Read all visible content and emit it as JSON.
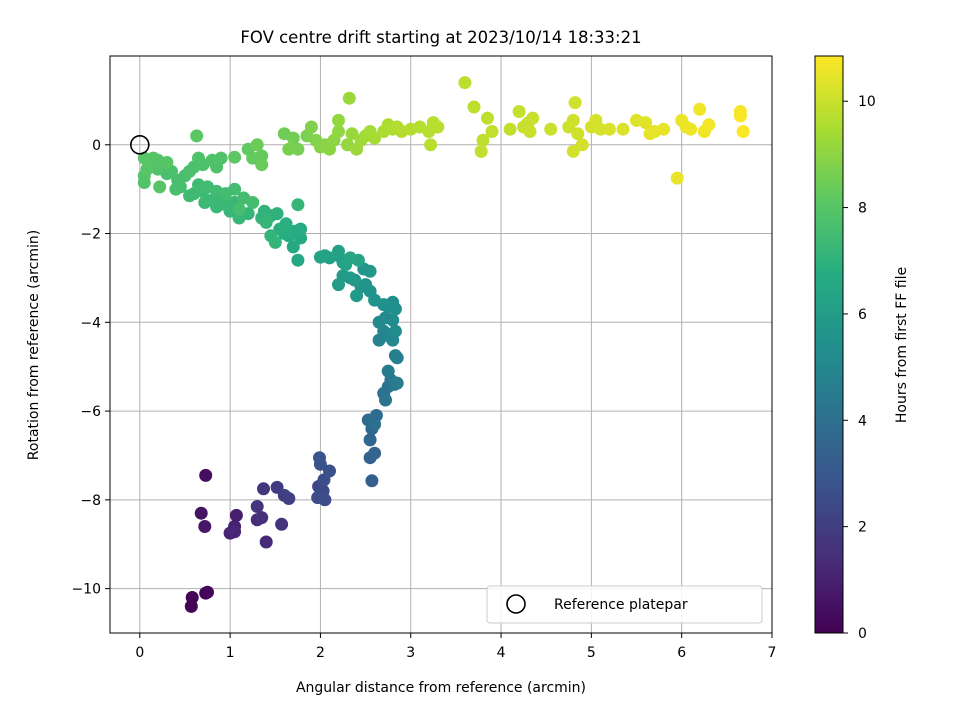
{
  "chart_data": {
    "type": "scatter",
    "title": "FOV centre drift starting at 2023/10/14 18:33:21",
    "xlabel": "Angular distance from reference (arcmin)",
    "ylabel": "Rotation from reference (arcmin)",
    "xlim": [
      -0.33,
      7.0
    ],
    "ylim": [
      -11.0,
      2.0
    ],
    "xticks": [
      0,
      1,
      2,
      3,
      4,
      5,
      6,
      7
    ],
    "yticks": [
      -10,
      -8,
      -6,
      -4,
      -2,
      0
    ],
    "grid": true,
    "legend": {
      "position": "lower-right",
      "entries": [
        {
          "label": "Reference platepar",
          "marker": "open-circle"
        }
      ]
    },
    "reference_point": {
      "x": 0,
      "y": 0
    },
    "colorbar": {
      "label": "Hours from first FF file",
      "min": 0,
      "max": 10.85,
      "ticks": [
        0,
        2,
        4,
        6,
        8,
        10
      ],
      "colormap": "viridis"
    },
    "points": [
      {
        "x": 0.57,
        "y": -10.4,
        "c": 0.05
      },
      {
        "x": 0.58,
        "y": -10.2,
        "c": 0.1
      },
      {
        "x": 0.73,
        "y": -10.1,
        "c": 0.15
      },
      {
        "x": 0.75,
        "y": -10.08,
        "c": 0.2
      },
      {
        "x": 0.73,
        "y": -7.45,
        "c": 0.4
      },
      {
        "x": 0.68,
        "y": -8.3,
        "c": 0.6
      },
      {
        "x": 0.72,
        "y": -8.6,
        "c": 0.7
      },
      {
        "x": 1.07,
        "y": -8.35,
        "c": 0.9
      },
      {
        "x": 1.05,
        "y": -8.6,
        "c": 1.0
      },
      {
        "x": 1.0,
        "y": -8.75,
        "c": 1.1
      },
      {
        "x": 1.05,
        "y": -8.72,
        "c": 1.2
      },
      {
        "x": 1.4,
        "y": -8.95,
        "c": 1.3
      },
      {
        "x": 1.3,
        "y": -8.45,
        "c": 1.4
      },
      {
        "x": 1.35,
        "y": -8.4,
        "c": 1.5
      },
      {
        "x": 1.57,
        "y": -8.55,
        "c": 1.6
      },
      {
        "x": 1.3,
        "y": -8.15,
        "c": 1.7
      },
      {
        "x": 1.37,
        "y": -7.75,
        "c": 1.8
      },
      {
        "x": 1.52,
        "y": -7.72,
        "c": 1.9
      },
      {
        "x": 1.6,
        "y": -7.9,
        "c": 2.0
      },
      {
        "x": 1.65,
        "y": -7.97,
        "c": 2.1
      },
      {
        "x": 1.98,
        "y": -7.7,
        "c": 2.3
      },
      {
        "x": 2.03,
        "y": -7.8,
        "c": 2.4
      },
      {
        "x": 1.97,
        "y": -7.95,
        "c": 2.5
      },
      {
        "x": 2.05,
        "y": -8.0,
        "c": 2.55
      },
      {
        "x": 2.04,
        "y": -7.55,
        "c": 2.6
      },
      {
        "x": 2.1,
        "y": -7.35,
        "c": 2.7
      },
      {
        "x": 2.0,
        "y": -7.2,
        "c": 2.8
      },
      {
        "x": 1.99,
        "y": -7.05,
        "c": 2.9
      },
      {
        "x": 2.57,
        "y": -7.57,
        "c": 3.3
      },
      {
        "x": 2.55,
        "y": -7.05,
        "c": 3.4
      },
      {
        "x": 2.6,
        "y": -6.95,
        "c": 3.5
      },
      {
        "x": 2.55,
        "y": -6.65,
        "c": 3.6
      },
      {
        "x": 2.57,
        "y": -6.4,
        "c": 3.7
      },
      {
        "x": 2.53,
        "y": -6.2,
        "c": 3.8
      },
      {
        "x": 2.62,
        "y": -6.1,
        "c": 3.9
      },
      {
        "x": 2.6,
        "y": -6.3,
        "c": 4.0
      },
      {
        "x": 2.7,
        "y": -5.6,
        "c": 4.1
      },
      {
        "x": 2.75,
        "y": -5.45,
        "c": 4.2
      },
      {
        "x": 2.72,
        "y": -5.75,
        "c": 4.25
      },
      {
        "x": 2.78,
        "y": -5.3,
        "c": 4.3
      },
      {
        "x": 2.82,
        "y": -5.4,
        "c": 4.4
      },
      {
        "x": 2.75,
        "y": -5.1,
        "c": 4.5
      },
      {
        "x": 2.85,
        "y": -5.37,
        "c": 4.55
      },
      {
        "x": 2.85,
        "y": -4.8,
        "c": 4.6
      },
      {
        "x": 2.83,
        "y": -4.75,
        "c": 4.7
      },
      {
        "x": 2.65,
        "y": -4.4,
        "c": 4.8
      },
      {
        "x": 2.7,
        "y": -4.2,
        "c": 4.9
      },
      {
        "x": 2.75,
        "y": -4.3,
        "c": 5.0
      },
      {
        "x": 2.8,
        "y": -4.4,
        "c": 5.05
      },
      {
        "x": 2.65,
        "y": -4.0,
        "c": 5.1
      },
      {
        "x": 2.72,
        "y": -3.9,
        "c": 5.15
      },
      {
        "x": 2.8,
        "y": -3.95,
        "c": 5.2
      },
      {
        "x": 2.83,
        "y": -4.2,
        "c": 5.25
      },
      {
        "x": 2.75,
        "y": -3.65,
        "c": 5.3
      },
      {
        "x": 2.8,
        "y": -3.55,
        "c": 5.35
      },
      {
        "x": 2.83,
        "y": -3.7,
        "c": 5.4
      },
      {
        "x": 2.7,
        "y": -3.6,
        "c": 5.45
      },
      {
        "x": 2.6,
        "y": -3.5,
        "c": 5.5
      },
      {
        "x": 2.55,
        "y": -3.3,
        "c": 5.55
      },
      {
        "x": 2.5,
        "y": -3.15,
        "c": 5.6
      },
      {
        "x": 2.45,
        "y": -3.2,
        "c": 5.65
      },
      {
        "x": 2.48,
        "y": -2.8,
        "c": 5.7
      },
      {
        "x": 2.55,
        "y": -2.85,
        "c": 5.75
      },
      {
        "x": 2.38,
        "y": -3.05,
        "c": 5.8
      },
      {
        "x": 2.4,
        "y": -3.4,
        "c": 5.85
      },
      {
        "x": 2.33,
        "y": -3.0,
        "c": 5.9
      },
      {
        "x": 2.25,
        "y": -2.95,
        "c": 5.95
      },
      {
        "x": 2.2,
        "y": -3.15,
        "c": 6.0
      },
      {
        "x": 2.25,
        "y": -2.65,
        "c": 6.05
      },
      {
        "x": 2.2,
        "y": -2.5,
        "c": 6.1
      },
      {
        "x": 2.2,
        "y": -2.4,
        "c": 6.15
      },
      {
        "x": 2.1,
        "y": -2.55,
        "c": 6.2
      },
      {
        "x": 2.05,
        "y": -2.5,
        "c": 6.25
      },
      {
        "x": 2.0,
        "y": -2.53,
        "c": 6.3
      },
      {
        "x": 2.28,
        "y": -2.7,
        "c": 6.35
      },
      {
        "x": 2.42,
        "y": -2.6,
        "c": 6.4
      },
      {
        "x": 2.33,
        "y": -2.55,
        "c": 6.45
      },
      {
        "x": 1.75,
        "y": -2.6,
        "c": 6.5
      },
      {
        "x": 1.7,
        "y": -2.3,
        "c": 6.55
      },
      {
        "x": 1.78,
        "y": -2.1,
        "c": 6.6
      },
      {
        "x": 1.72,
        "y": -1.95,
        "c": 6.65
      },
      {
        "x": 1.78,
        "y": -1.9,
        "c": 6.7
      },
      {
        "x": 1.65,
        "y": -2.05,
        "c": 6.75
      },
      {
        "x": 1.6,
        "y": -2.0,
        "c": 6.8
      },
      {
        "x": 1.55,
        "y": -1.9,
        "c": 6.85
      },
      {
        "x": 1.62,
        "y": -1.78,
        "c": 6.9
      },
      {
        "x": 1.52,
        "y": -1.55,
        "c": 6.95
      },
      {
        "x": 1.45,
        "y": -1.6,
        "c": 7.0
      },
      {
        "x": 1.38,
        "y": -1.5,
        "c": 7.05
      },
      {
        "x": 1.35,
        "y": -1.65,
        "c": 7.1
      },
      {
        "x": 1.45,
        "y": -2.05,
        "c": 7.12
      },
      {
        "x": 1.5,
        "y": -2.2,
        "c": 7.14
      },
      {
        "x": 1.4,
        "y": -1.75,
        "c": 7.16
      },
      {
        "x": 1.75,
        "y": -1.35,
        "c": 7.18
      },
      {
        "x": 1.2,
        "y": -1.55,
        "c": 7.2
      },
      {
        "x": 1.1,
        "y": -1.65,
        "c": 7.22
      },
      {
        "x": 1.0,
        "y": -1.5,
        "c": 7.24
      },
      {
        "x": 1.05,
        "y": -1.3,
        "c": 7.26
      },
      {
        "x": 0.95,
        "y": -1.35,
        "c": 7.28
      },
      {
        "x": 0.85,
        "y": -1.4,
        "c": 7.3
      },
      {
        "x": 0.9,
        "y": -1.2,
        "c": 7.32
      },
      {
        "x": 0.8,
        "y": -1.25,
        "c": 7.34
      },
      {
        "x": 0.72,
        "y": -1.3,
        "c": 7.36
      },
      {
        "x": 0.7,
        "y": -1.05,
        "c": 7.38
      },
      {
        "x": 0.6,
        "y": -1.1,
        "c": 7.4
      },
      {
        "x": 0.55,
        "y": -1.15,
        "c": 7.42
      },
      {
        "x": 0.65,
        "y": -0.9,
        "c": 7.44
      },
      {
        "x": 0.75,
        "y": -0.95,
        "c": 7.46
      },
      {
        "x": 0.85,
        "y": -1.05,
        "c": 7.48
      },
      {
        "x": 0.95,
        "y": -1.1,
        "c": 7.5
      },
      {
        "x": 1.05,
        "y": -1.0,
        "c": 7.52
      },
      {
        "x": 1.15,
        "y": -1.2,
        "c": 7.54
      },
      {
        "x": 1.25,
        "y": -1.3,
        "c": 7.56
      },
      {
        "x": 1.1,
        "y": -1.45,
        "c": 7.58
      },
      {
        "x": 0.45,
        "y": -0.95,
        "c": 7.6
      },
      {
        "x": 0.4,
        "y": -1.0,
        "c": 7.62
      },
      {
        "x": 0.42,
        "y": -0.8,
        "c": 7.64
      },
      {
        "x": 0.5,
        "y": -0.7,
        "c": 7.66
      },
      {
        "x": 0.35,
        "y": -0.6,
        "c": 7.68
      },
      {
        "x": 0.3,
        "y": -0.65,
        "c": 7.7
      },
      {
        "x": 0.55,
        "y": -0.6,
        "c": 7.72
      },
      {
        "x": 0.6,
        "y": -0.5,
        "c": 7.74
      },
      {
        "x": 0.7,
        "y": -0.45,
        "c": 7.76
      },
      {
        "x": 0.8,
        "y": -0.35,
        "c": 7.78
      },
      {
        "x": 0.85,
        "y": -0.5,
        "c": 7.8
      },
      {
        "x": 0.9,
        "y": -0.3,
        "c": 7.82
      },
      {
        "x": 0.65,
        "y": -0.3,
        "c": 7.84
      },
      {
        "x": 0.2,
        "y": -0.55,
        "c": 7.86
      },
      {
        "x": 0.05,
        "y": -0.7,
        "c": 7.88
      },
      {
        "x": 0.05,
        "y": -0.85,
        "c": 7.9
      },
      {
        "x": 0.1,
        "y": -0.4,
        "c": 7.92
      },
      {
        "x": 0.15,
        "y": -0.3,
        "c": 7.94
      },
      {
        "x": 0.2,
        "y": -0.35,
        "c": 7.96
      },
      {
        "x": 0.3,
        "y": -0.4,
        "c": 7.98
      },
      {
        "x": 0.22,
        "y": -0.95,
        "c": 8.0
      },
      {
        "x": 0.08,
        "y": -0.55,
        "c": 8.02
      },
      {
        "x": 0.05,
        "y": -0.3,
        "c": 8.04
      },
      {
        "x": 0.63,
        "y": 0.2,
        "c": 8.1
      },
      {
        "x": 1.05,
        "y": -0.28,
        "c": 8.15
      },
      {
        "x": 1.2,
        "y": -0.1,
        "c": 8.2
      },
      {
        "x": 1.25,
        "y": -0.3,
        "c": 8.25
      },
      {
        "x": 1.35,
        "y": -0.25,
        "c": 8.3
      },
      {
        "x": 1.35,
        "y": -0.45,
        "c": 8.35
      },
      {
        "x": 1.3,
        "y": 0.0,
        "c": 8.4
      },
      {
        "x": 1.6,
        "y": 0.25,
        "c": 8.45
      },
      {
        "x": 1.7,
        "y": 0.15,
        "c": 8.5
      },
      {
        "x": 1.7,
        "y": -0.05,
        "c": 8.55
      },
      {
        "x": 1.75,
        "y": -0.1,
        "c": 8.6
      },
      {
        "x": 1.65,
        "y": -0.1,
        "c": 8.65
      },
      {
        "x": 1.85,
        "y": 0.2,
        "c": 8.7
      },
      {
        "x": 1.9,
        "y": 0.4,
        "c": 8.75
      },
      {
        "x": 1.95,
        "y": 0.1,
        "c": 8.8
      },
      {
        "x": 2.0,
        "y": -0.05,
        "c": 8.85
      },
      {
        "x": 2.05,
        "y": 0.0,
        "c": 8.9
      },
      {
        "x": 2.1,
        "y": -0.1,
        "c": 8.95
      },
      {
        "x": 2.15,
        "y": 0.1,
        "c": 9.0
      },
      {
        "x": 2.2,
        "y": 0.3,
        "c": 9.05
      },
      {
        "x": 2.2,
        "y": 0.55,
        "c": 9.1
      },
      {
        "x": 2.3,
        "y": 0.0,
        "c": 9.15
      },
      {
        "x": 2.35,
        "y": 0.25,
        "c": 9.2
      },
      {
        "x": 2.32,
        "y": 1.05,
        "c": 9.22
      },
      {
        "x": 2.4,
        "y": -0.1,
        "c": 9.25
      },
      {
        "x": 2.45,
        "y": 0.1,
        "c": 9.3
      },
      {
        "x": 2.5,
        "y": 0.2,
        "c": 9.35
      },
      {
        "x": 2.55,
        "y": 0.3,
        "c": 9.4
      },
      {
        "x": 2.6,
        "y": 0.15,
        "c": 9.45
      },
      {
        "x": 2.7,
        "y": 0.3,
        "c": 9.5
      },
      {
        "x": 2.75,
        "y": 0.45,
        "c": 9.55
      },
      {
        "x": 2.8,
        "y": 0.35,
        "c": 9.6
      },
      {
        "x": 2.85,
        "y": 0.4,
        "c": 9.62
      },
      {
        "x": 2.9,
        "y": 0.3,
        "c": 9.64
      },
      {
        "x": 3.0,
        "y": 0.35,
        "c": 9.66
      },
      {
        "x": 3.1,
        "y": 0.4,
        "c": 9.68
      },
      {
        "x": 3.2,
        "y": 0.3,
        "c": 9.7
      },
      {
        "x": 3.25,
        "y": 0.5,
        "c": 9.72
      },
      {
        "x": 3.3,
        "y": 0.4,
        "c": 9.74
      },
      {
        "x": 3.22,
        "y": 0.0,
        "c": 9.76
      },
      {
        "x": 3.6,
        "y": 1.4,
        "c": 9.78
      },
      {
        "x": 3.7,
        "y": 0.85,
        "c": 9.8
      },
      {
        "x": 3.8,
        "y": 0.1,
        "c": 9.82
      },
      {
        "x": 3.85,
        "y": 0.6,
        "c": 9.84
      },
      {
        "x": 3.78,
        "y": -0.15,
        "c": 9.86
      },
      {
        "x": 3.9,
        "y": 0.3,
        "c": 9.88
      },
      {
        "x": 4.1,
        "y": 0.35,
        "c": 9.9
      },
      {
        "x": 4.2,
        "y": 0.75,
        "c": 9.92
      },
      {
        "x": 4.25,
        "y": 0.4,
        "c": 9.94
      },
      {
        "x": 4.3,
        "y": 0.5,
        "c": 9.96
      },
      {
        "x": 4.35,
        "y": 0.6,
        "c": 9.98
      },
      {
        "x": 4.32,
        "y": 0.3,
        "c": 10.0
      },
      {
        "x": 4.55,
        "y": 0.35,
        "c": 10.02
      },
      {
        "x": 4.75,
        "y": 0.4,
        "c": 10.05
      },
      {
        "x": 4.8,
        "y": 0.55,
        "c": 10.08
      },
      {
        "x": 4.82,
        "y": 0.95,
        "c": 10.1
      },
      {
        "x": 4.85,
        "y": 0.25,
        "c": 10.12
      },
      {
        "x": 4.8,
        "y": -0.15,
        "c": 10.14
      },
      {
        "x": 4.9,
        "y": 0.0,
        "c": 10.16
      },
      {
        "x": 5.0,
        "y": 0.4,
        "c": 10.18
      },
      {
        "x": 5.05,
        "y": 0.55,
        "c": 10.2
      },
      {
        "x": 5.1,
        "y": 0.35,
        "c": 10.22
      },
      {
        "x": 5.2,
        "y": 0.35,
        "c": 10.25
      },
      {
        "x": 5.35,
        "y": 0.35,
        "c": 10.3
      },
      {
        "x": 5.5,
        "y": 0.55,
        "c": 10.35
      },
      {
        "x": 5.6,
        "y": 0.5,
        "c": 10.4
      },
      {
        "x": 5.65,
        "y": 0.25,
        "c": 10.45
      },
      {
        "x": 5.7,
        "y": 0.3,
        "c": 10.48
      },
      {
        "x": 5.8,
        "y": 0.35,
        "c": 10.5
      },
      {
        "x": 5.95,
        "y": -0.75,
        "c": 10.52
      },
      {
        "x": 6.0,
        "y": 0.55,
        "c": 10.55
      },
      {
        "x": 6.05,
        "y": 0.4,
        "c": 10.58
      },
      {
        "x": 6.1,
        "y": 0.35,
        "c": 10.6
      },
      {
        "x": 6.2,
        "y": 0.8,
        "c": 10.63
      },
      {
        "x": 6.25,
        "y": 0.3,
        "c": 10.66
      },
      {
        "x": 6.3,
        "y": 0.45,
        "c": 10.7
      },
      {
        "x": 6.65,
        "y": 0.75,
        "c": 10.75
      },
      {
        "x": 6.65,
        "y": 0.65,
        "c": 10.78
      },
      {
        "x": 6.68,
        "y": 0.3,
        "c": 10.82
      }
    ]
  }
}
